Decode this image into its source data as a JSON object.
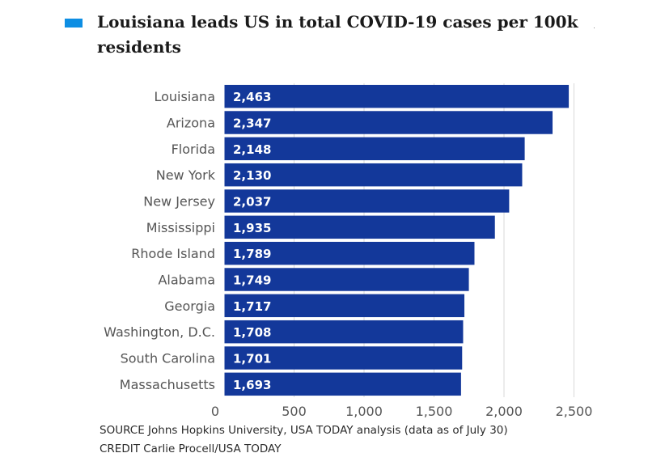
{
  "header": {
    "title": "Louisiana leads US in total COVID-19 cases per 100k residents"
  },
  "chart_data": {
    "type": "bar",
    "orientation": "horizontal",
    "title": "Louisiana leads US in total COVID-19 cases per 100k residents",
    "categories": [
      "Louisiana",
      "Arizona",
      "Florida",
      "New York",
      "New Jersey",
      "Mississippi",
      "Rhode Island",
      "Alabama",
      "Georgia",
      "Washington, D.C.",
      "South Carolina",
      "Massachusetts"
    ],
    "values": [
      2463,
      2347,
      2148,
      2130,
      2037,
      1935,
      1789,
      1749,
      1717,
      1708,
      1701,
      1693
    ],
    "value_labels": [
      "2,463",
      "2,347",
      "2,148",
      "2,130",
      "2,037",
      "1,935",
      "1,789",
      "1,749",
      "1,717",
      "1,708",
      "1,701",
      "1,693"
    ],
    "xticks": [
      0,
      500,
      1000,
      1500,
      2000,
      2500
    ],
    "xtick_labels": [
      "0",
      "500",
      "1,000",
      "1,500",
      "2,000",
      "2,500"
    ],
    "xlim": [
      0,
      2500
    ],
    "xlabel": "",
    "ylabel": "",
    "grid": true,
    "bar_color": "#13389a",
    "grid_color": "#d9d9d9",
    "label_color": "#555555"
  },
  "footer": {
    "source": "SOURCE Johns Hopkins University, USA TODAY analysis (data as of July 30)",
    "credit": "CREDIT Carlie Procell/USA TODAY"
  }
}
